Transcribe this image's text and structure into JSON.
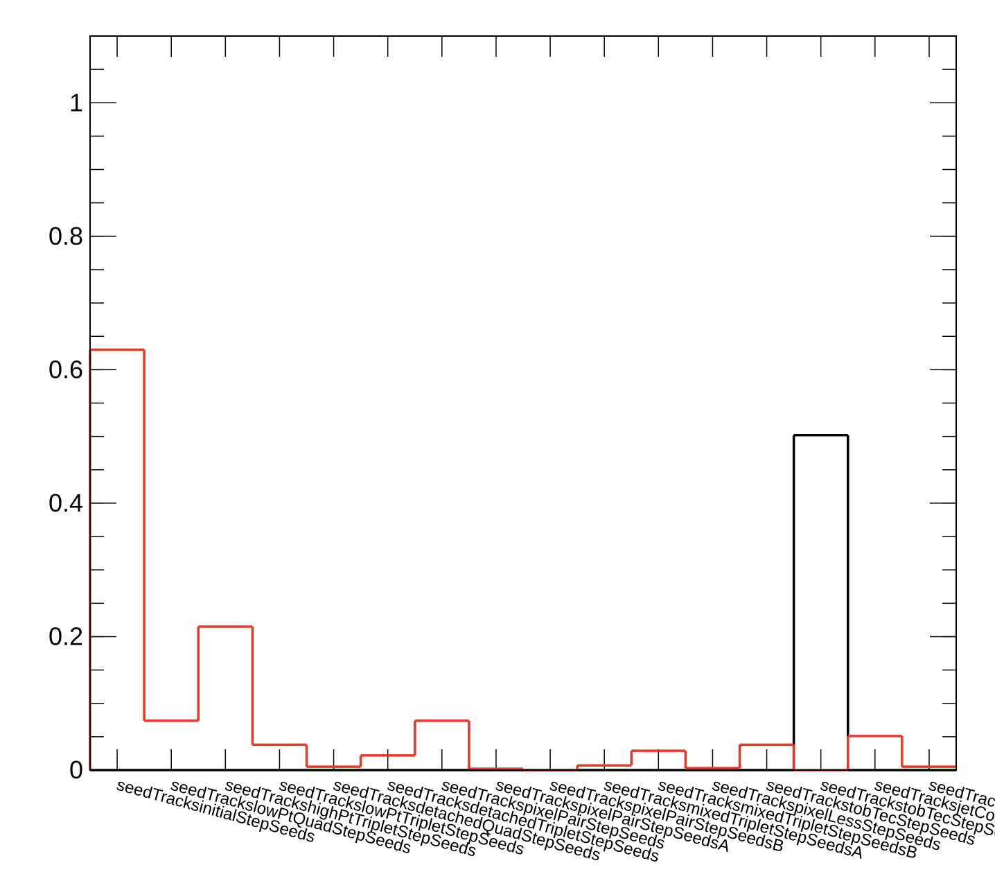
{
  "chart_data": {
    "type": "histogram",
    "categories": [
      "seedTracksinitialStepSeeds",
      "seedTrackslowPtQuadStepSeeds",
      "seedTrackshighPtTripletStepSeeds",
      "seedTrackslowPtTripletStepSeeds",
      "seedTracksdetachedQuadStepSeeds",
      "seedTracksdetachedTripletStepSeeds",
      "seedTrackspixelPairStepSeeds",
      "seedTrackspixelPairStepSeedsA",
      "seedTrackspixelPairStepSeedsB",
      "seedTracksmixedTripletStepSeedsA",
      "seedTracksmixedTripletStepSeedsB",
      "seedTrackspixelLessStepSeeds",
      "seedTrackstobTecStepSeeds",
      "seedTrackstobTecStepSeedsPair",
      "seedTracksjetCoreRegionalStepSeeds",
      "seedTracksmuonSeededSeedsInOut"
    ],
    "series": [
      {
        "color": "#000000",
        "values": [
          0,
          0,
          0,
          0,
          0,
          0,
          0,
          0,
          0,
          0,
          0,
          0,
          0,
          0.502,
          0,
          0
        ]
      },
      {
        "color": "#e8382a",
        "values": [
          0.63,
          0.074,
          0.215,
          0.038,
          0.005,
          0.022,
          0.074,
          0.002,
          0.0,
          0.007,
          0.029,
          0.003,
          0.038,
          0.0,
          0.051,
          0.005
        ]
      }
    ],
    "ylim": [
      0,
      1.1
    ],
    "yticks": [
      0,
      0.2,
      0.4,
      0.6,
      0.8,
      1
    ]
  }
}
